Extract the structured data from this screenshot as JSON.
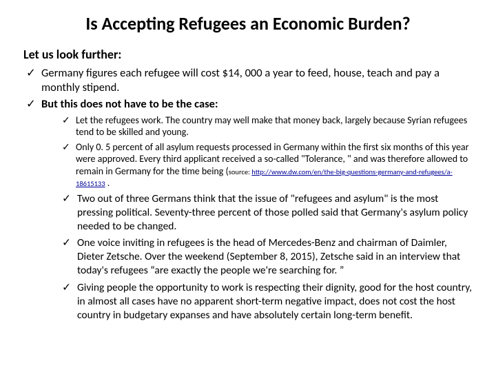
{
  "title": "Is Accepting Refugees an Economic Burden?",
  "subhead": "Let us look further:",
  "level1": [
    {
      "text": "Germany figures each refugee will cost $14, 000 a year to feed, house, teach and pay a monthly stipend.",
      "bold": false
    },
    {
      "text": "But this does not have to be the case:",
      "bold": true
    }
  ],
  "level2": [
    {
      "text": "Let the refugees work. The country may well make that money back, largely because Syrian refugees tend to be skilled and young."
    },
    {
      "text": "Only 0. 5 percent of all asylum requests processed in Germany within the first six months of this year were approved. Every third applicant received a so-called \"Tolerance, \" and was therefore allowed to remain in Germany for the time being (",
      "source_prefix": "source: ",
      "source_link": "http://www.dw.com/en/the-big-questions-germany-and-refugees/a-18615133",
      "trail": " ."
    }
  ],
  "level3": [
    {
      "text": "Two out of three Germans think that the issue of \"refugees and asylum\" is the most pressing political. Seventy-three percent of those polled said that Germany's asylum policy needed to be changed."
    },
    {
      "text": "One voice inviting in refugees is the head of Mercedes-Benz and chairman of Daimler, Dieter Zetsche. Over the weekend (September 8, 2015), Zetsche said in an interview that today's refugees “are exactly the people we're searching for. ”"
    },
    {
      "text": "Giving people the opportunity to work is respecting their dignity, good for the host country, in almost all cases have no apparent short-term negative impact, does not cost the host country in budgetary expanses and have absolutely certain long-term benefit."
    }
  ]
}
